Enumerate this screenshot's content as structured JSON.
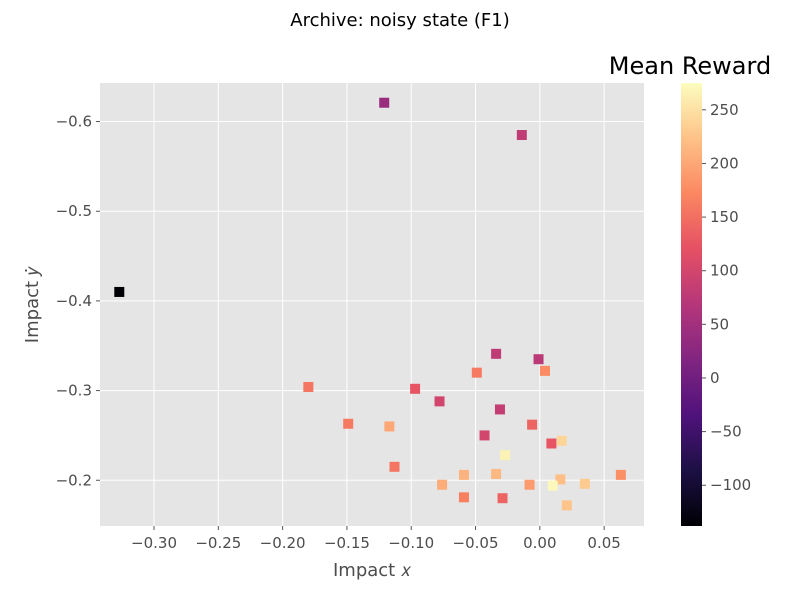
{
  "chart_data": {
    "type": "scatter",
    "title": "Archive: noisy state (F1)",
    "xlabel": "Impact 𝑥",
    "ylabel": "Impact 𝑦̇",
    "xlim": [
      -0.342,
      0.081
    ],
    "ylim": [
      -0.149,
      -0.643
    ],
    "y_inverted": true,
    "grid": true,
    "marker": "square",
    "colormap": "magma",
    "colorbar": {
      "title": "Mean Reward",
      "range": [
        -138,
        275
      ],
      "ticks": [
        -100,
        -50,
        0,
        50,
        100,
        150,
        200,
        250
      ],
      "tick_labels": [
        "−100",
        "−50",
        "0",
        "50",
        "100",
        "150",
        "200",
        "250"
      ]
    },
    "x_ticks": [
      -0.3,
      -0.25,
      -0.2,
      -0.15,
      -0.1,
      -0.05,
      0.0,
      0.05
    ],
    "x_tick_labels": [
      "−0.30",
      "−0.25",
      "−0.20",
      "−0.15",
      "−0.10",
      "−0.05",
      "0.00",
      "0.05"
    ],
    "y_ticks": [
      -0.6,
      -0.5,
      -0.4,
      -0.3,
      -0.2
    ],
    "y_tick_labels": [
      "−0.6",
      "−0.5",
      "−0.4",
      "−0.3",
      "−0.2"
    ],
    "points": [
      {
        "x": -0.327,
        "y": -0.41,
        "reward": -138
      },
      {
        "x": -0.121,
        "y": -0.621,
        "reward": 40
      },
      {
        "x": -0.014,
        "y": -0.585,
        "reward": 80
      },
      {
        "x": -0.034,
        "y": -0.341,
        "reward": 80
      },
      {
        "x": -0.001,
        "y": -0.335,
        "reward": 75
      },
      {
        "x": 0.004,
        "y": -0.322,
        "reward": 175
      },
      {
        "x": -0.049,
        "y": -0.32,
        "reward": 160
      },
      {
        "x": -0.18,
        "y": -0.304,
        "reward": 155
      },
      {
        "x": -0.097,
        "y": -0.302,
        "reward": 125
      },
      {
        "x": -0.078,
        "y": -0.288,
        "reward": 100
      },
      {
        "x": -0.031,
        "y": -0.279,
        "reward": 85
      },
      {
        "x": -0.149,
        "y": -0.263,
        "reward": 160
      },
      {
        "x": -0.117,
        "y": -0.26,
        "reward": 200
      },
      {
        "x": -0.006,
        "y": -0.262,
        "reward": 140
      },
      {
        "x": -0.043,
        "y": -0.25,
        "reward": 100
      },
      {
        "x": 0.009,
        "y": -0.241,
        "reward": 125
      },
      {
        "x": 0.017,
        "y": -0.244,
        "reward": 240
      },
      {
        "x": -0.027,
        "y": -0.228,
        "reward": 265
      },
      {
        "x": -0.113,
        "y": -0.215,
        "reward": 155
      },
      {
        "x": -0.059,
        "y": -0.206,
        "reward": 210
      },
      {
        "x": -0.034,
        "y": -0.207,
        "reward": 215
      },
      {
        "x": 0.016,
        "y": -0.201,
        "reward": 220
      },
      {
        "x": 0.063,
        "y": -0.206,
        "reward": 180
      },
      {
        "x": -0.076,
        "y": -0.195,
        "reward": 205
      },
      {
        "x": -0.008,
        "y": -0.195,
        "reward": 190
      },
      {
        "x": 0.01,
        "y": -0.194,
        "reward": 270
      },
      {
        "x": 0.035,
        "y": -0.196,
        "reward": 230
      },
      {
        "x": -0.059,
        "y": -0.181,
        "reward": 165
      },
      {
        "x": -0.029,
        "y": -0.18,
        "reward": 140
      },
      {
        "x": 0.021,
        "y": -0.172,
        "reward": 225
      }
    ]
  }
}
